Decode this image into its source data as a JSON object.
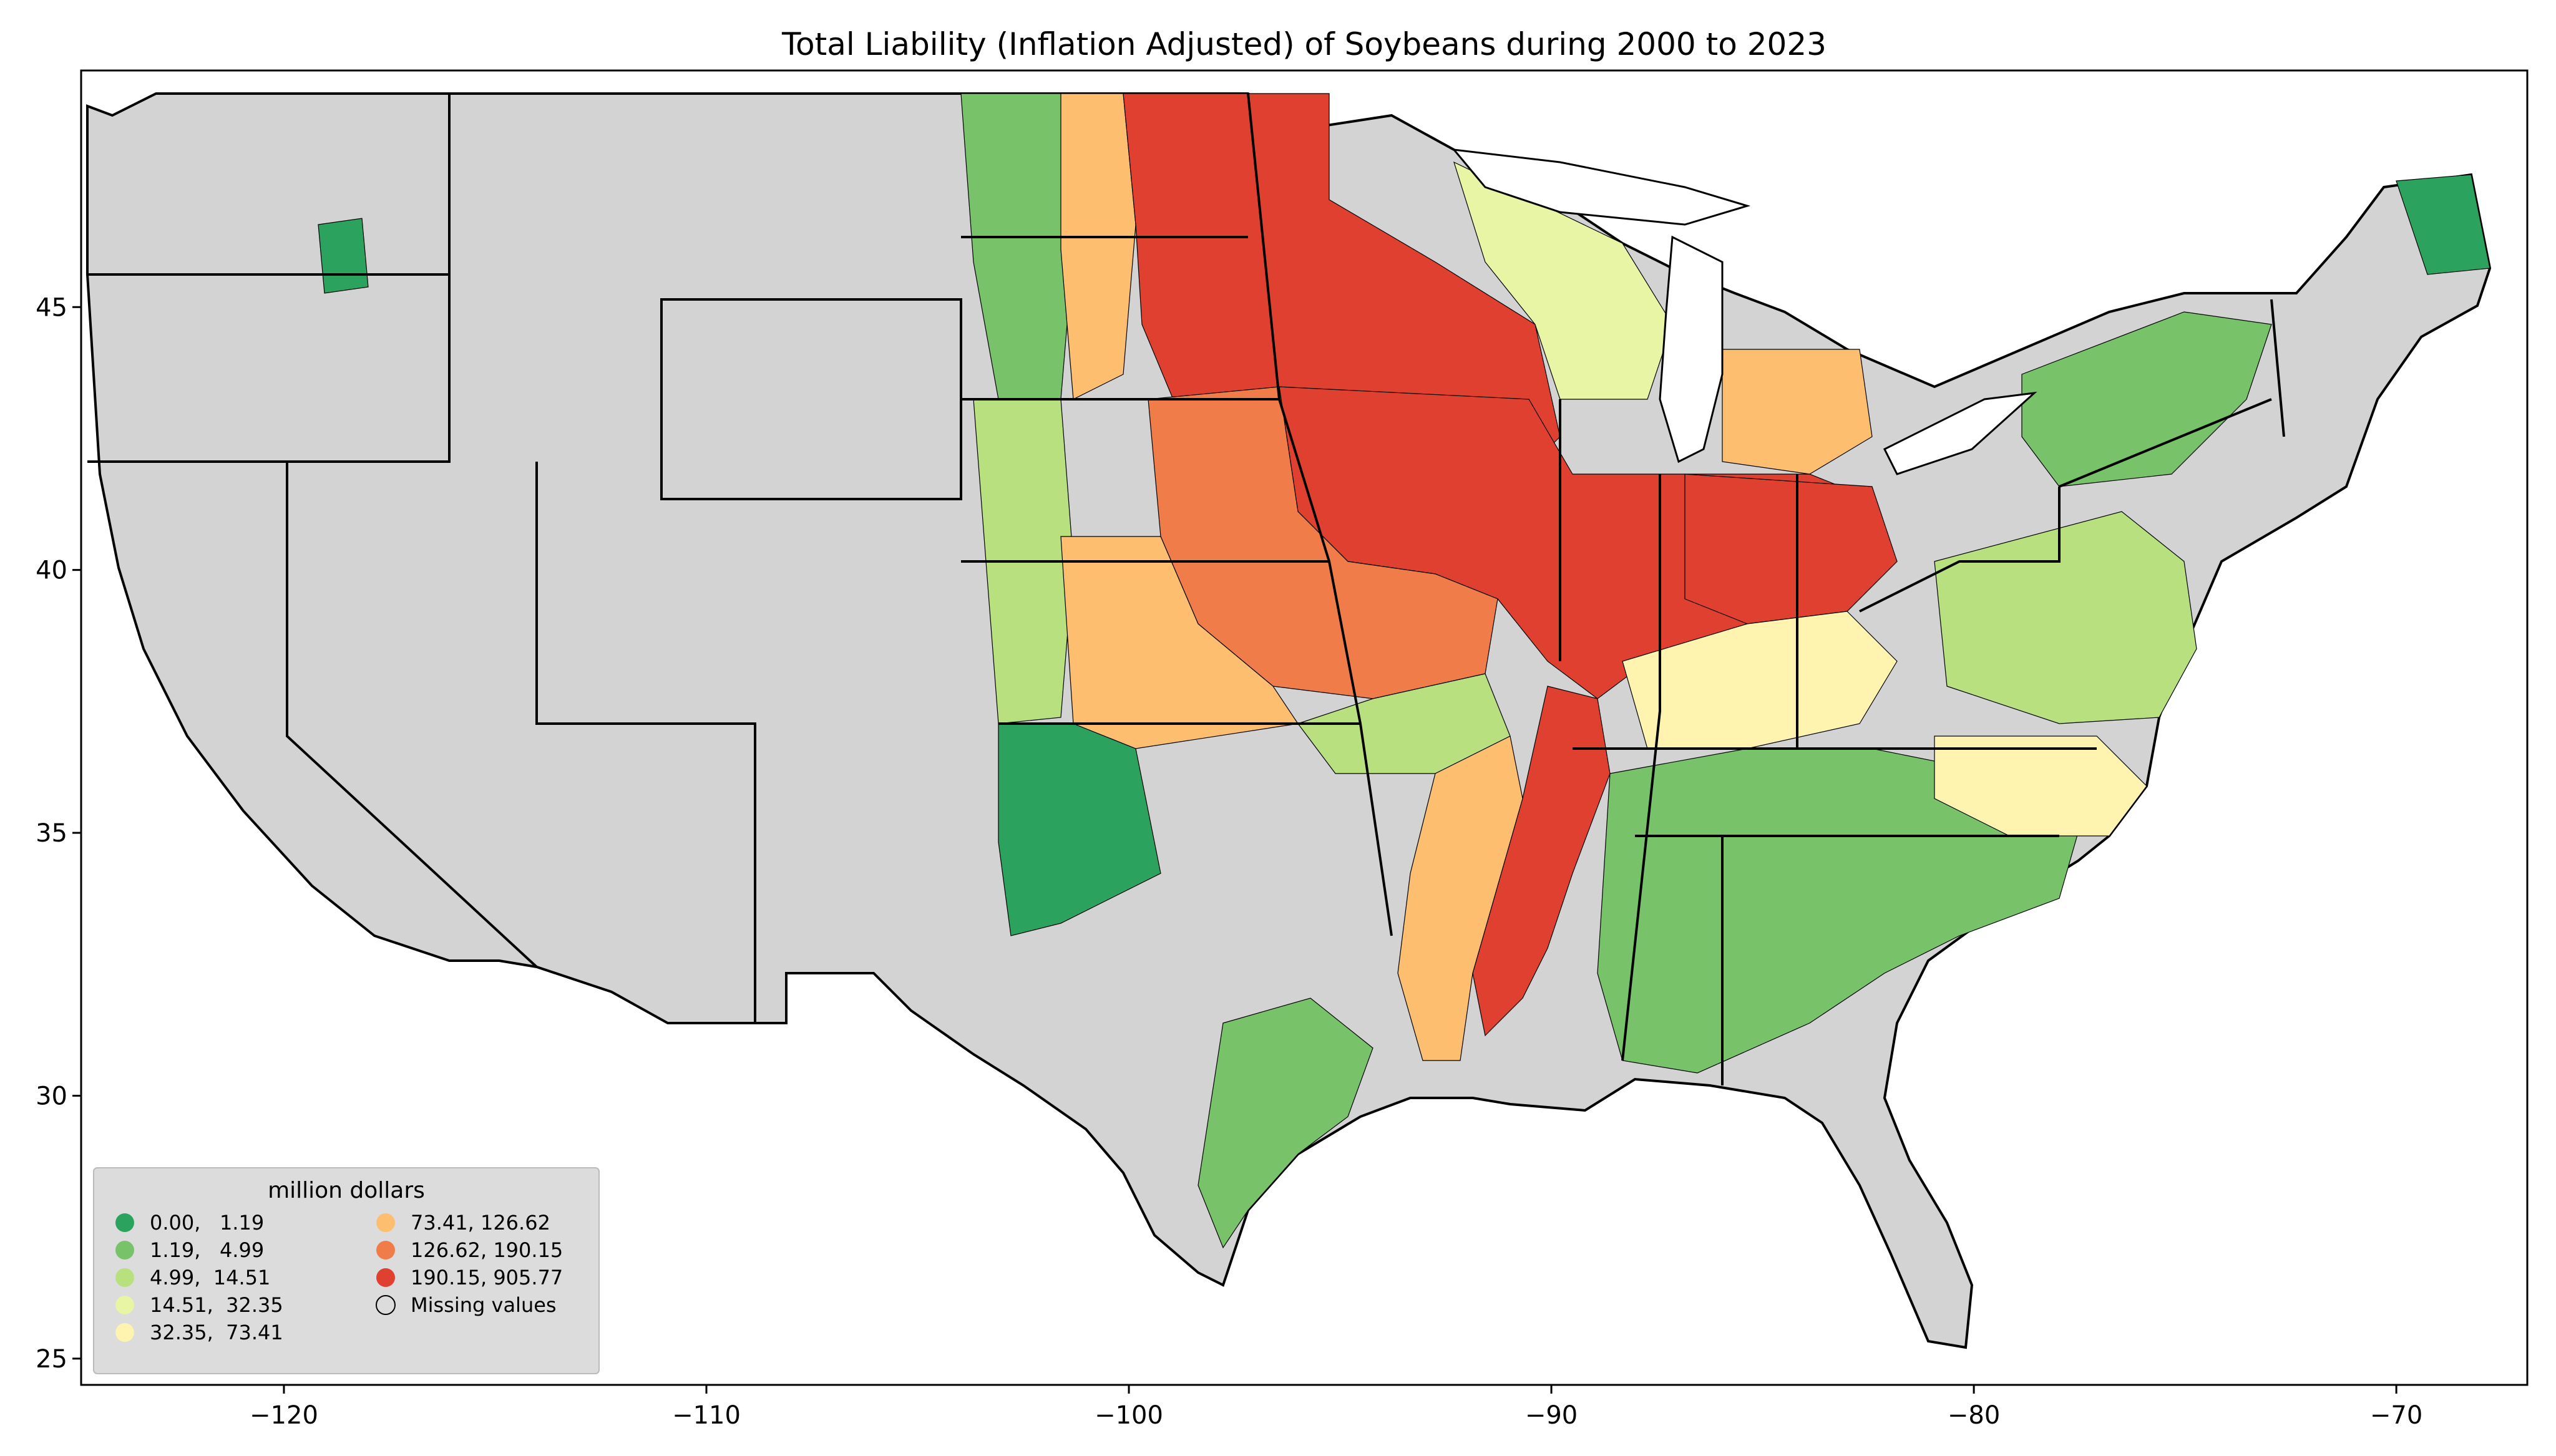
{
  "figure": {
    "title": "Total Liability  (Inflation Adjusted) of Soybeans during 2000 to 2023"
  },
  "axes": {
    "x_ticks": [
      "−120",
      "−110",
      "−100",
      "−90",
      "−80",
      "−70"
    ],
    "y_ticks": [
      "25",
      "30",
      "35",
      "40",
      "45"
    ],
    "x_tick_values": [
      -120,
      -110,
      -100,
      -90,
      -80,
      -70
    ],
    "y_tick_values": [
      25,
      30,
      35,
      40,
      45
    ],
    "lon_range": [
      -124.8,
      -66.9
    ],
    "lat_range": [
      24.5,
      49.5
    ]
  },
  "legend": {
    "title": "million dollars",
    "placement": "lower-left",
    "items": [
      {
        "label": "0.00,   1.19",
        "color": "#2ca25f"
      },
      {
        "label": "1.19,   4.99",
        "color": "#78c26a"
      },
      {
        "label": "4.99,  14.51",
        "color": "#b8e07f"
      },
      {
        "label": "14.51,  32.35",
        "color": "#e8f5a4"
      },
      {
        "label": "32.35,  73.41",
        "color": "#fff3b0"
      },
      {
        "label": "73.41, 126.62",
        "color": "#fdbf6f"
      },
      {
        "label": "126.62, 190.15",
        "color": "#f07c4a"
      },
      {
        "label": "190.15, 905.77",
        "color": "#e04030"
      },
      {
        "label": "Missing values",
        "color": "#d3d3d3"
      }
    ]
  },
  "colors": {
    "missing": "#d3d3d3",
    "border": "#000000"
  }
}
